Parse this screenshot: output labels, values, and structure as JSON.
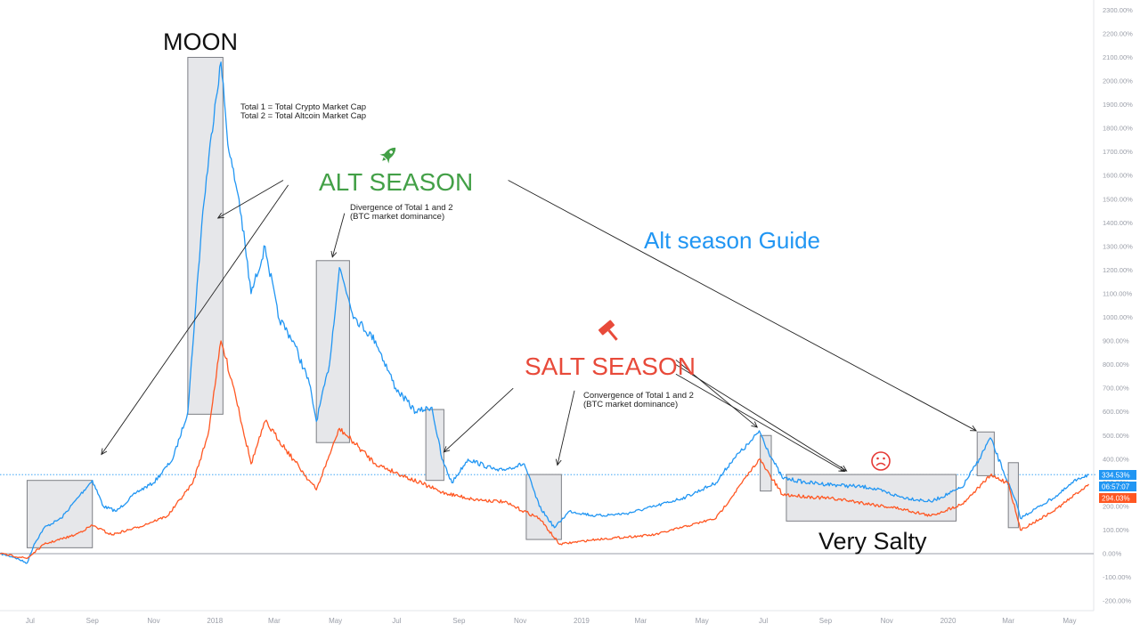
{
  "chart_data": {
    "type": "line",
    "x_tick_labels": [
      "Jul",
      "Sep",
      "Nov",
      "2018",
      "Mar",
      "May",
      "Jul",
      "Sep",
      "Nov",
      "2019",
      "Mar",
      "May",
      "Jul",
      "Sep",
      "Nov",
      "2020",
      "Mar",
      "May"
    ],
    "y_tick_labels": [
      "-200.00%",
      "-100.00%",
      "0.00%",
      "100.00%",
      "200.00%",
      "300.00%",
      "400.00%",
      "500.00%",
      "600.00%",
      "700.00%",
      "800.00%",
      "900.00%",
      "1000.00%",
      "1100.00%",
      "1200.00%",
      "1300.00%",
      "1400.00%",
      "1500.00%",
      "1600.00%",
      "1700.00%",
      "1800.00%",
      "1900.00%",
      "2000.00%",
      "2100.00%",
      "2200.00%",
      "2300.00%"
    ],
    "ylim": [
      -250,
      2330
    ],
    "xlim": [
      "2017-06-01",
      "2020-05-25"
    ],
    "series": [
      {
        "color": "#2196f3",
        "points": [
          [
            "2017-06-01",
            0
          ],
          [
            "2017-06-15",
            -15
          ],
          [
            "2017-06-28",
            -40
          ],
          [
            "2017-07-05",
            40
          ],
          [
            "2017-07-15",
            110
          ],
          [
            "2017-08-01",
            150
          ],
          [
            "2017-08-20",
            250
          ],
          [
            "2017-09-01",
            310
          ],
          [
            "2017-09-12",
            200
          ],
          [
            "2017-09-25",
            180
          ],
          [
            "2017-10-15",
            260
          ],
          [
            "2017-11-01",
            300
          ],
          [
            "2017-11-20",
            400
          ],
          [
            "2017-12-05",
            600
          ],
          [
            "2017-12-12",
            1000
          ],
          [
            "2017-12-20",
            1450
          ],
          [
            "2018-01-01",
            1900
          ],
          [
            "2018-01-07",
            2080
          ],
          [
            "2018-01-15",
            1700
          ],
          [
            "2018-01-25",
            1500
          ],
          [
            "2018-02-06",
            1100
          ],
          [
            "2018-02-20",
            1300
          ],
          [
            "2018-03-05",
            1000
          ],
          [
            "2018-03-20",
            900
          ],
          [
            "2018-04-05",
            720
          ],
          [
            "2018-04-12",
            560
          ],
          [
            "2018-04-25",
            800
          ],
          [
            "2018-05-05",
            1210
          ],
          [
            "2018-05-20",
            1000
          ],
          [
            "2018-06-10",
            900
          ],
          [
            "2018-06-30",
            700
          ],
          [
            "2018-07-20",
            600
          ],
          [
            "2018-08-05",
            620
          ],
          [
            "2018-08-15",
            400
          ],
          [
            "2018-08-25",
            300
          ],
          [
            "2018-09-10",
            400
          ],
          [
            "2018-10-10",
            350
          ],
          [
            "2018-11-05",
            380
          ],
          [
            "2018-11-20",
            200
          ],
          [
            "2018-12-05",
            110
          ],
          [
            "2018-12-20",
            180
          ],
          [
            "2019-01-15",
            160
          ],
          [
            "2019-02-15",
            170
          ],
          [
            "2019-03-15",
            200
          ],
          [
            "2019-04-15",
            240
          ],
          [
            "2019-05-15",
            300
          ],
          [
            "2019-06-01",
            400
          ],
          [
            "2019-06-20",
            480
          ],
          [
            "2019-06-27",
            520
          ],
          [
            "2019-07-10",
            400
          ],
          [
            "2019-07-20",
            320
          ],
          [
            "2019-08-15",
            300
          ],
          [
            "2019-09-15",
            290
          ],
          [
            "2019-10-15",
            280
          ],
          [
            "2019-11-15",
            240
          ],
          [
            "2019-12-15",
            220
          ],
          [
            "2020-01-15",
            280
          ],
          [
            "2020-02-01",
            400
          ],
          [
            "2020-02-12",
            490
          ],
          [
            "2020-02-25",
            350
          ],
          [
            "2020-03-10",
            200
          ],
          [
            "2020-03-13",
            150
          ],
          [
            "2020-04-01",
            200
          ],
          [
            "2020-04-20",
            250
          ],
          [
            "2020-05-10",
            320
          ],
          [
            "2020-05-20",
            334.53
          ]
        ]
      },
      {
        "color": "#ff5722",
        "points": [
          [
            "2017-06-01",
            0
          ],
          [
            "2017-06-28",
            -20
          ],
          [
            "2017-07-15",
            40
          ],
          [
            "2017-08-15",
            80
          ],
          [
            "2017-09-01",
            120
          ],
          [
            "2017-09-20",
            80
          ],
          [
            "2017-10-15",
            110
          ],
          [
            "2017-11-15",
            160
          ],
          [
            "2017-12-10",
            300
          ],
          [
            "2017-12-25",
            500
          ],
          [
            "2018-01-07",
            900
          ],
          [
            "2018-01-20",
            700
          ],
          [
            "2018-02-06",
            380
          ],
          [
            "2018-02-20",
            560
          ],
          [
            "2018-03-20",
            400
          ],
          [
            "2018-04-12",
            270
          ],
          [
            "2018-05-05",
            530
          ],
          [
            "2018-06-10",
            380
          ],
          [
            "2018-08-15",
            260
          ],
          [
            "2018-09-15",
            230
          ],
          [
            "2018-10-15",
            220
          ],
          [
            "2018-11-20",
            150
          ],
          [
            "2018-12-10",
            40
          ],
          [
            "2019-01-15",
            60
          ],
          [
            "2019-03-15",
            80
          ],
          [
            "2019-05-15",
            150
          ],
          [
            "2019-06-27",
            400
          ],
          [
            "2019-07-20",
            250
          ],
          [
            "2019-09-15",
            230
          ],
          [
            "2019-11-15",
            190
          ],
          [
            "2019-12-15",
            160
          ],
          [
            "2020-01-15",
            210
          ],
          [
            "2020-02-12",
            330
          ],
          [
            "2020-03-01",
            300
          ],
          [
            "2020-03-13",
            100
          ],
          [
            "2020-04-15",
            180
          ],
          [
            "2020-05-20",
            294.03
          ]
        ]
      }
    ],
    "current_value_badges": [
      "334.53%",
      "06:57:07",
      "294.03%"
    ],
    "annotations": {
      "moon": "MOON",
      "definition_line_1": "Total 1 = Total Crypto Market Cap",
      "definition_line_2": "Total 2 = Total Altcoin Market Cap",
      "alt_season": "ALT SEASON",
      "alt_note_line_1": "Divergence of Total 1 and 2",
      "alt_note_line_2": "(BTC market dominance)",
      "guide": "Alt season Guide",
      "salt_season": "SALT SEASON",
      "salt_note_line_1": "Convergence of Total 1 and 2",
      "salt_note_line_2": "(BTC market dominance)",
      "very_salty": "Very Salty"
    },
    "highlight_boxes": [
      {
        "x0": "2017-06-28",
        "x1": "2017-09-01",
        "y0": 25,
        "y1": 310
      },
      {
        "x0": "2017-12-05",
        "x1": "2018-01-09",
        "y0": 590,
        "y1": 2100
      },
      {
        "x0": "2018-04-12",
        "x1": "2018-05-15",
        "y0": 470,
        "y1": 1240
      },
      {
        "x0": "2018-07-30",
        "x1": "2018-08-17",
        "y0": 310,
        "y1": 610
      },
      {
        "x0": "2018-11-07",
        "x1": "2018-12-12",
        "y0": 60,
        "y1": 335
      },
      {
        "x0": "2019-06-28",
        "x1": "2019-07-09",
        "y0": 265,
        "y1": 500
      },
      {
        "x0": "2019-07-24",
        "x1": "2020-01-09",
        "y0": 138,
        "y1": 335
      },
      {
        "x0": "2020-01-30",
        "x1": "2020-02-16",
        "y0": 330,
        "y1": 515
      },
      {
        "x0": "2020-03-01",
        "x1": "2020-03-11",
        "y0": 110,
        "y1": 385
      }
    ],
    "arrows": [
      {
        "from": [
          "2018-03-15",
          1560
        ],
        "to": [
          "2017-09-10",
          420
        ]
      },
      {
        "from": [
          "2018-03-10",
          1580
        ],
        "to": [
          "2018-01-04",
          1420
        ]
      },
      {
        "from": [
          "2018-05-10",
          1440
        ],
        "to": [
          "2018-04-28",
          1255
        ]
      },
      {
        "from": [
          "2018-10-20",
          1580
        ],
        "to": [
          "2020-01-29",
          520
        ]
      },
      {
        "from": [
          "2018-10-25",
          700
        ],
        "to": [
          "2018-08-17",
          430
        ]
      },
      {
        "from": [
          "2018-12-25",
          690
        ],
        "to": [
          "2018-12-08",
          375
        ]
      },
      {
        "from": [
          "2019-04-05",
          820
        ],
        "to": [
          "2019-06-25",
          535
        ]
      },
      {
        "from": [
          "2019-04-05",
          760
        ],
        "to": [
          "2019-09-20",
          348
        ]
      },
      {
        "from": [
          "2019-04-05",
          800
        ],
        "to": [
          "2019-09-22",
          350
        ]
      }
    ],
    "zero_line": 0,
    "current_level_line": 334.53
  }
}
